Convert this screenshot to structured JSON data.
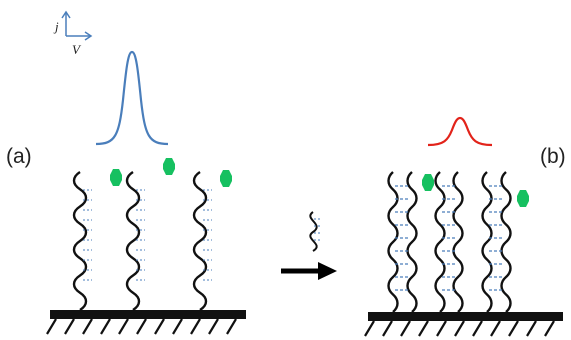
{
  "axes_inset": {
    "y_label": "j",
    "x_label": "V",
    "color": "#4a7ebb"
  },
  "panel_a": {
    "label": "(a)",
    "peak_color": "#4a7ebb",
    "strand_count": 3,
    "target_count": 3
  },
  "panel_b": {
    "label": "(b)",
    "peak_color": "#e2231a",
    "strand_count": 4,
    "target_count": 2
  },
  "colors": {
    "strand": "#111111",
    "base": "#111111",
    "target": "#16c060",
    "hybrid_bond": "#4a7ebb",
    "arrow": "#000000"
  },
  "icons": [
    "probe-strand",
    "target-molecule",
    "substrate",
    "hybridization-bond",
    "reaction-arrow",
    "free-strand"
  ]
}
